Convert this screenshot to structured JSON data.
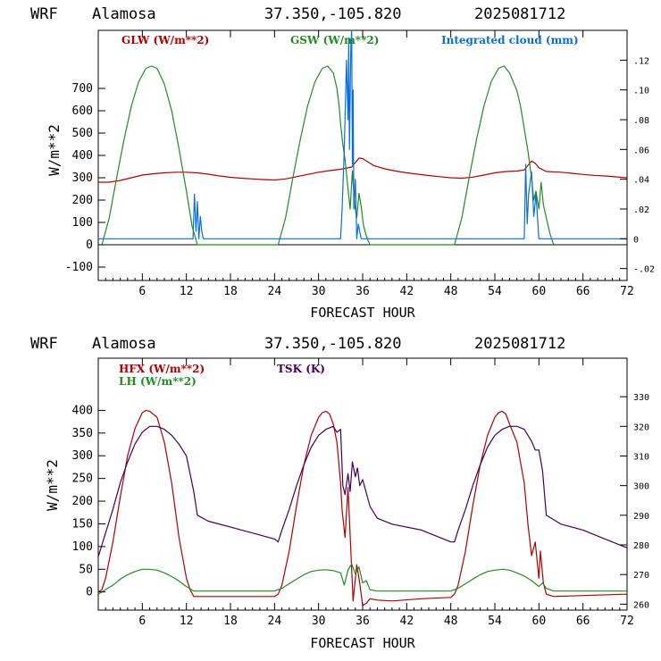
{
  "chart_data": [
    {
      "type": "line",
      "header": {
        "model": "WRF",
        "station": "Alamosa",
        "coords": "37.350,-105.820",
        "run": "2025081712"
      },
      "xlabel": "FORECAST HOUR",
      "ylabel": "W/m**2",
      "xlim": [
        0,
        72
      ],
      "xticks": [
        6,
        12,
        18,
        24,
        30,
        36,
        42,
        48,
        54,
        60,
        66,
        72
      ],
      "ylim": [
        -160,
        960
      ],
      "yticks": [
        -100,
        0,
        100,
        200,
        300,
        400,
        500,
        600,
        700
      ],
      "y2lim": [
        -0.028,
        0.14
      ],
      "y2ticks": [
        -0.02,
        0,
        0.02,
        0.04,
        0.06,
        0.08,
        0.1,
        0.12
      ],
      "y2ticklabels": [
        "-.02",
        "0",
        ".02",
        ".04",
        ".06",
        ".08",
        ".10",
        ".12"
      ],
      "grid": false,
      "series": [
        {
          "name": "GLW (W/m**2)",
          "color": "#b00000",
          "axis": "left",
          "x": [
            0,
            1.5,
            3,
            4.5,
            6,
            7.5,
            9,
            10.5,
            12,
            13.5,
            15,
            16.5,
            18,
            19.5,
            21,
            22.5,
            24,
            25.5,
            27,
            28.5,
            30,
            31.5,
            33,
            34.5,
            35.5,
            36,
            37.5,
            39,
            40.5,
            42,
            43.5,
            45,
            46.5,
            48,
            49.5,
            51,
            52.5,
            54,
            55.5,
            57,
            58,
            58.5,
            59,
            59.5,
            60,
            61,
            63,
            64.5,
            66,
            67.5,
            69,
            70.5,
            72
          ],
          "y": [
            280,
            280,
            288,
            300,
            312,
            318,
            322,
            325,
            325,
            322,
            316,
            308,
            302,
            298,
            295,
            292,
            290,
            295,
            305,
            315,
            325,
            332,
            338,
            348,
            388,
            386,
            355,
            340,
            330,
            322,
            316,
            310,
            305,
            300,
            298,
            303,
            312,
            322,
            328,
            330,
            335,
            355,
            375,
            365,
            345,
            328,
            325,
            320,
            315,
            311,
            308,
            304,
            300
          ]
        },
        {
          "name": "GSW (W/m**2)",
          "color": "#228b22",
          "axis": "left",
          "x": [
            0.5,
            1.5,
            2.5,
            3.5,
            4.5,
            5.5,
            6.5,
            7.25,
            8,
            9,
            10,
            11,
            12,
            12.8,
            13.5,
            24.5,
            25.5,
            26.5,
            27.5,
            28.5,
            29.5,
            30.5,
            31.25,
            32,
            32.5,
            32.8,
            33,
            33.3,
            33.6,
            34,
            34.3,
            34.6,
            34.9,
            35.2,
            35.5,
            35.8,
            36.1,
            36.4,
            36.7,
            37,
            37.5,
            38,
            48.5,
            49.5,
            50.5,
            51.5,
            52.5,
            53.5,
            54.5,
            55.25,
            56,
            57,
            57.5,
            58,
            58.5,
            59,
            59.3,
            59.6,
            60,
            60.3,
            60.6,
            61,
            61.5,
            62
          ],
          "y": [
            0,
            120,
            300,
            470,
            620,
            730,
            790,
            800,
            790,
            720,
            600,
            430,
            240,
            80,
            0,
            0,
            120,
            300,
            470,
            620,
            730,
            790,
            800,
            770,
            700,
            620,
            540,
            450,
            380,
            250,
            160,
            330,
            180,
            120,
            230,
            170,
            90,
            50,
            20,
            0,
            0,
            0,
            0,
            120,
            300,
            470,
            620,
            730,
            790,
            800,
            770,
            690,
            620,
            520,
            420,
            300,
            200,
            240,
            160,
            280,
            180,
            120,
            50,
            0
          ]
        },
        {
          "name": "Integrated cloud (mm)",
          "color": "#0a6ed8",
          "axis": "right",
          "x": [
            0,
            12.9,
            13.1,
            13.3,
            13.5,
            13.7,
            13.9,
            14.1,
            14.3,
            33,
            33.2,
            33.5,
            33.8,
            34,
            34.1,
            34.2,
            34.4,
            34.5,
            34.6,
            34.7,
            34.8,
            35,
            35.2,
            35.4,
            35.6,
            35.8,
            36,
            58,
            58.2,
            58.4,
            58.6,
            59,
            59.3,
            59.6,
            60,
            72
          ],
          "y": [
            0,
            0,
            0.03,
            0.005,
            0.025,
            0,
            0.015,
            0.005,
            0,
            0,
            0.02,
            0.06,
            0.12,
            0.08,
            0.135,
            0.06,
            0.13,
            0.14,
            0.05,
            0.1,
            0.02,
            0.04,
            0.0,
            0.01,
            0.005,
            0.0,
            0,
            0,
            0.05,
            0.01,
            0.03,
            0.045,
            0.015,
            0.03,
            0,
            0
          ]
        }
      ]
    },
    {
      "type": "line",
      "header": {
        "model": "WRF",
        "station": "Alamosa",
        "coords": "37.350,-105.820",
        "run": "2025081712"
      },
      "xlabel": "FORECAST HOUR",
      "ylabel": "W/m**2",
      "xlim": [
        0,
        72
      ],
      "xticks": [
        6,
        12,
        18,
        24,
        30,
        36,
        42,
        48,
        54,
        60,
        66,
        72
      ],
      "ylim": [
        -40,
        515
      ],
      "yticks": [
        0,
        50,
        100,
        150,
        200,
        250,
        300,
        350,
        400
      ],
      "y2lim": [
        258,
        343
      ],
      "y2ticks": [
        260,
        270,
        280,
        290,
        300,
        310,
        320,
        330
      ],
      "y2ticklabels": [
        "260",
        "270",
        "280",
        "290",
        "300",
        "310",
        "320",
        "330"
      ],
      "grid": false,
      "series": [
        {
          "name": "HFX (W/m**2)",
          "color": "#b00000",
          "axis": "left",
          "x": [
            0,
            0.5,
            1,
            2,
            3,
            4,
            5,
            6,
            6.5,
            7,
            8,
            9,
            10,
            11,
            12,
            12.5,
            13,
            18,
            24,
            24.5,
            25,
            26,
            27,
            28,
            29,
            30,
            30.5,
            31,
            31.5,
            32,
            32.5,
            33,
            33.2,
            33.6,
            34,
            34.4,
            34.7,
            35.2,
            35.6,
            36,
            36.5,
            37,
            38,
            40,
            44,
            48,
            48.5,
            49,
            50,
            51,
            52,
            53,
            54,
            54.5,
            55,
            55.5,
            56,
            57,
            58,
            58.5,
            59,
            59.5,
            60,
            60.2,
            60.6,
            61,
            62,
            66,
            72
          ],
          "y": [
            0,
            5,
            30,
            110,
            210,
            300,
            360,
            395,
            400,
            398,
            385,
            330,
            240,
            120,
            30,
            5,
            -10,
            -10,
            -10,
            -5,
            15,
            90,
            190,
            280,
            345,
            385,
            395,
            398,
            392,
            370,
            330,
            240,
            180,
            120,
            230,
            90,
            -20,
            60,
            20,
            -30,
            -25,
            -15,
            -18,
            -20,
            -15,
            -12,
            -5,
            15,
            90,
            190,
            280,
            345,
            385,
            395,
            398,
            392,
            370,
            330,
            240,
            150,
            80,
            110,
            30,
            90,
            20,
            -5,
            -10,
            -8,
            -5
          ]
        },
        {
          "name": "LH  (W/m**2)",
          "color": "#228b22",
          "axis": "left",
          "x": [
            0,
            1,
            2,
            3,
            4,
            5,
            6,
            7,
            8,
            9,
            10,
            11,
            12,
            13,
            18,
            24,
            25,
            26,
            27,
            28,
            29,
            30,
            31,
            32,
            33,
            33.5,
            34,
            34.5,
            35,
            35.5,
            36,
            36.5,
            37,
            38,
            40,
            44,
            48,
            49,
            50,
            51,
            52,
            53,
            54,
            55,
            56,
            57,
            58,
            59,
            60,
            60.5,
            61,
            62,
            66,
            72
          ],
          "y": [
            -5,
            5,
            15,
            28,
            38,
            45,
            50,
            50,
            48,
            42,
            34,
            24,
            12,
            2,
            2,
            2,
            8,
            18,
            28,
            38,
            45,
            48,
            49,
            47,
            42,
            15,
            48,
            62,
            40,
            55,
            20,
            25,
            5,
            2,
            2,
            2,
            2,
            8,
            18,
            28,
            38,
            45,
            48,
            50,
            48,
            42,
            35,
            25,
            12,
            20,
            8,
            2,
            2,
            2
          ]
        },
        {
          "name": "TSK (K)",
          "color": "#40005a",
          "axis": "right",
          "x": [
            0,
            0.5,
            1,
            2,
            3,
            4,
            5,
            6,
            7,
            8,
            9,
            10,
            11,
            12,
            13,
            13.5,
            15,
            18,
            21,
            24,
            24.5,
            25,
            26,
            27,
            28,
            29,
            30,
            31,
            32,
            32.5,
            33,
            33.3,
            33.6,
            34,
            34.3,
            34.6,
            35,
            35.3,
            35.6,
            36,
            37,
            38,
            40,
            44,
            48,
            48.5,
            49,
            50,
            51,
            52,
            53,
            54,
            55,
            56,
            57,
            58,
            59,
            59.5,
            60,
            60.5,
            61,
            63,
            66,
            69,
            72
          ],
          "y": [
            276,
            280,
            284,
            292,
            301,
            308,
            314,
            318,
            320,
            320,
            319,
            317,
            314,
            310,
            298,
            290,
            288,
            286,
            284,
            282,
            281,
            285,
            292,
            300,
            307,
            313,
            317,
            319,
            320,
            318,
            319,
            300,
            297,
            304,
            298,
            308,
            303,
            306,
            300,
            302,
            293,
            289,
            287,
            285,
            281,
            281,
            285,
            292,
            300,
            307,
            313,
            317,
            319,
            320,
            320,
            319,
            315,
            312,
            312,
            305,
            290,
            287,
            285,
            282,
            279
          ]
        }
      ]
    }
  ]
}
